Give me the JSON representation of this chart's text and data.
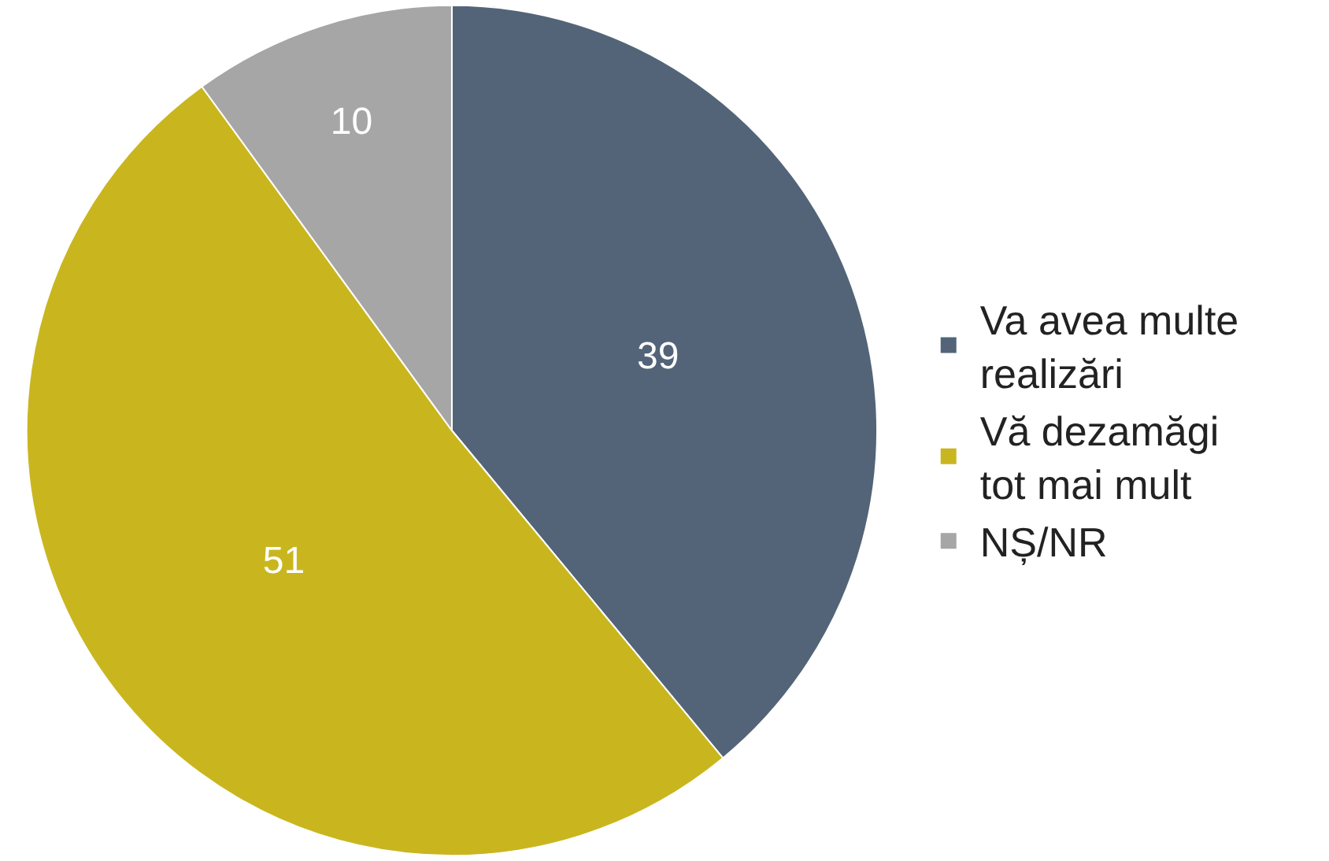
{
  "chart_data": {
    "type": "pie",
    "categories": [
      "Va avea multe realizări",
      "Vă dezamăgi tot mai mult",
      "NȘ/NR"
    ],
    "values": [
      39,
      51,
      10
    ],
    "colors": [
      "#536478",
      "#c9b61e",
      "#a6a6a6"
    ],
    "data_labels": true,
    "legend": "right"
  }
}
